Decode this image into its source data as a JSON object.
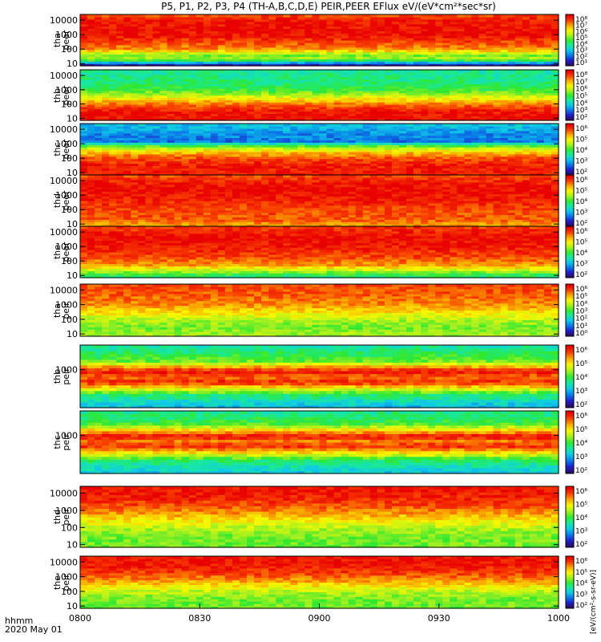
{
  "title": "P5, P1, P2, P3, P4 (TH-A,B,C,D,E) PEIR,PEER EFlux eV/(eV*cm²*sec*sr)",
  "x_axis": {
    "label_line1": "hhmm",
    "label_line2": "2020 May 01",
    "ticks": [
      "0800",
      "0830",
      "0900",
      "0930",
      "1000"
    ]
  },
  "colorbar_units": "[eV/(cm²-s-sr-eV)]",
  "colorscale": [
    "#2a0a60",
    "#2020c8",
    "#0a7ae8",
    "#10c8e8",
    "#18e8a0",
    "#30e830",
    "#a8f020",
    "#f8f800",
    "#f8a800",
    "#f84000",
    "#e80000"
  ],
  "chart_data": [
    {
      "type": "heatmap",
      "panel": "the-peer",
      "label_line1": "tha",
      "label_line2": "peer",
      "yscale": "log",
      "y_ticks": [
        "10",
        "100",
        "1000",
        "10000"
      ],
      "cb_ticks": [
        "10⁸",
        "10⁷",
        "10⁶",
        "10⁵",
        "10⁴",
        "10³",
        "10²",
        "10¹"
      ],
      "profile": [
        [
          10,
          0.1
        ],
        [
          15,
          0.45
        ],
        [
          25,
          0.6
        ],
        [
          40,
          0.55
        ],
        [
          100,
          0.82
        ],
        [
          1000,
          0.98
        ],
        [
          10000,
          0.97
        ],
        [
          20000,
          0.9
        ]
      ]
    },
    {
      "type": "heatmap",
      "panel": "thb-peer",
      "label_line1": "thb",
      "label_line2": "peer",
      "yscale": "log",
      "y_ticks": [
        "10",
        "100",
        "1000",
        "10000"
      ],
      "cb_ticks": [
        "10⁸",
        "10⁷",
        "10⁶",
        "10⁵",
        "10⁴",
        "10³",
        "10²"
      ],
      "profile": [
        [
          10,
          0.98
        ],
        [
          30,
          0.97
        ],
        [
          100,
          0.85
        ],
        [
          300,
          0.68
        ],
        [
          1000,
          0.5
        ],
        [
          3000,
          0.44
        ],
        [
          10000,
          0.42
        ],
        [
          20000,
          0.4
        ]
      ]
    },
    {
      "type": "heatmap",
      "panel": "thc-peer",
      "label_line1": "thc",
      "label_line2": "peer",
      "yscale": "log",
      "y_ticks": [
        "10",
        "100",
        "1000",
        "10000"
      ],
      "cb_ticks": [
        "10⁶",
        "10⁵",
        "10⁴",
        "10³",
        "10²"
      ],
      "profile": [
        [
          10,
          0.96
        ],
        [
          40,
          0.95
        ],
        [
          100,
          0.9
        ],
        [
          300,
          0.75
        ],
        [
          700,
          0.55
        ],
        [
          1500,
          0.2
        ],
        [
          5000,
          0.22
        ],
        [
          20000,
          0.3
        ]
      ]
    },
    {
      "type": "heatmap",
      "panel": "thd-peer",
      "label_line1": "thd",
      "label_line2": "peer",
      "yscale": "log",
      "y_ticks": [
        "10",
        "100",
        "1000",
        "10000"
      ],
      "cb_ticks": [
        "10⁶",
        "10⁵",
        "10⁴",
        "10³",
        "10²"
      ],
      "profile": [
        [
          10,
          0.8
        ],
        [
          20,
          0.88
        ],
        [
          100,
          0.9
        ],
        [
          500,
          0.95
        ],
        [
          2000,
          0.99
        ],
        [
          8000,
          0.96
        ],
        [
          20000,
          0.9
        ]
      ]
    },
    {
      "type": "heatmap",
      "panel": "the-peer-2",
      "label_line1": "the",
      "label_line2": "peer",
      "yscale": "log",
      "y_ticks": [
        "10",
        "100",
        "1000",
        "10000"
      ],
      "cb_ticks": [
        "10⁶",
        "10⁵",
        "10⁴",
        "10³",
        "10²"
      ],
      "profile": [
        [
          10,
          0.45
        ],
        [
          20,
          0.6
        ],
        [
          50,
          0.8
        ],
        [
          200,
          0.9
        ],
        [
          1000,
          0.96
        ],
        [
          4000,
          0.99
        ],
        [
          20000,
          0.92
        ]
      ]
    },
    {
      "type": "heatmap",
      "panel": "tha-peir",
      "label_line1": "tha",
      "label_line2": "peir",
      "yscale": "log",
      "y_ticks": [
        "10",
        "100",
        "1000",
        "10000"
      ],
      "cb_ticks": [
        "10⁶",
        "10⁵",
        "10⁴",
        "10³",
        "10²",
        "10¹",
        "10⁰"
      ],
      "profile": [
        [
          10,
          0.6
        ],
        [
          30,
          0.55
        ],
        [
          100,
          0.62
        ],
        [
          300,
          0.72
        ],
        [
          1000,
          0.82
        ],
        [
          5000,
          0.88
        ],
        [
          20000,
          0.9
        ]
      ]
    },
    {
      "type": "heatmap",
      "panel": "thb-peir",
      "label_line1": "thb",
      "label_line2": "peir",
      "yscale": "log",
      "y_ticks": [
        "1000"
      ],
      "cb_ticks": [
        "10⁶",
        "10⁵",
        "10⁴",
        "10³",
        "10²"
      ],
      "profile": [
        [
          10,
          0.3
        ],
        [
          40,
          0.45
        ],
        [
          100,
          0.72
        ],
        [
          200,
          0.95
        ],
        [
          400,
          0.85
        ],
        [
          800,
          0.98
        ],
        [
          1500,
          0.8
        ],
        [
          3000,
          0.55
        ],
        [
          10000,
          0.45
        ],
        [
          20000,
          0.4
        ]
      ]
    },
    {
      "type": "heatmap",
      "panel": "thc-peir",
      "label_line1": "thc",
      "label_line2": "peir",
      "yscale": "log",
      "y_ticks": [
        "1000"
      ],
      "cb_ticks": [
        "10⁶",
        "10⁵",
        "10⁴",
        "10³",
        "10²"
      ],
      "profile": [
        [
          10,
          0.32
        ],
        [
          40,
          0.45
        ],
        [
          100,
          0.7
        ],
        [
          250,
          0.93
        ],
        [
          500,
          0.85
        ],
        [
          900,
          0.98
        ],
        [
          2000,
          0.75
        ],
        [
          5000,
          0.5
        ],
        [
          20000,
          0.42
        ]
      ]
    },
    {
      "type": "heatmap",
      "panel": "thd-peir",
      "label_line1": "thd",
      "label_line2": "peir",
      "yscale": "log",
      "y_ticks": [
        "10",
        "100",
        "1000",
        "10000"
      ],
      "cb_ticks": [
        "10⁶",
        "10⁵",
        "10⁴",
        "10³",
        "10²"
      ],
      "profile": [
        [
          10,
          0.55
        ],
        [
          30,
          0.55
        ],
        [
          100,
          0.62
        ],
        [
          500,
          0.78
        ],
        [
          2000,
          0.9
        ],
        [
          8000,
          0.96
        ],
        [
          20000,
          0.97
        ]
      ]
    },
    {
      "type": "heatmap",
      "panel": "the-peir",
      "label_line1": "the",
      "label_line2": "peir",
      "yscale": "log",
      "y_ticks": [
        "10",
        "100",
        "1000",
        "10000"
      ],
      "cb_ticks": [
        "10⁶",
        "10⁵",
        "10⁴",
        "10³",
        "10²"
      ],
      "profile": [
        [
          10,
          0.55
        ],
        [
          30,
          0.55
        ],
        [
          100,
          0.62
        ],
        [
          500,
          0.8
        ],
        [
          2000,
          0.92
        ],
        [
          8000,
          0.97
        ],
        [
          20000,
          0.97
        ]
      ]
    }
  ]
}
